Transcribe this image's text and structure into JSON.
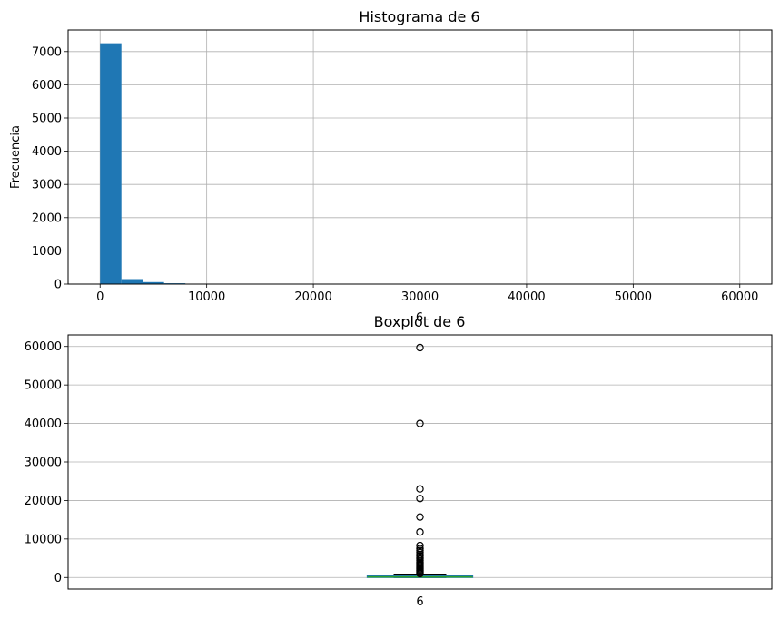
{
  "chart_data": [
    {
      "type": "histogram",
      "title": "Histograma de 6",
      "xlabel": "6",
      "ylabel": "Frecuencia",
      "xlim": [
        -3000,
        63000
      ],
      "ylim": [
        0,
        7650
      ],
      "xticks": [
        0,
        10000,
        20000,
        30000,
        40000,
        50000,
        60000
      ],
      "yticks": [
        0,
        1000,
        2000,
        3000,
        4000,
        5000,
        6000,
        7000
      ],
      "bin_width": 2000,
      "bins": [
        {
          "x0": 0,
          "x1": 2000,
          "count": 7250
        },
        {
          "x0": 2000,
          "x1": 4000,
          "count": 150
        },
        {
          "x0": 4000,
          "x1": 6000,
          "count": 60
        },
        {
          "x0": 6000,
          "x1": 8000,
          "count": 25
        },
        {
          "x0": 8000,
          "x1": 10000,
          "count": 4
        },
        {
          "x0": 10000,
          "x1": 12000,
          "count": 3
        },
        {
          "x0": 14000,
          "x1": 16000,
          "count": 2
        },
        {
          "x0": 20000,
          "x1": 22000,
          "count": 2
        },
        {
          "x0": 22000,
          "x1": 24000,
          "count": 2
        },
        {
          "x0": 40000,
          "x1": 42000,
          "count": 2
        },
        {
          "x0": 58000,
          "x1": 60000,
          "count": 3
        }
      ],
      "grid": true,
      "color": "#1f77b4"
    },
    {
      "type": "boxplot",
      "title": "Boxplot de 6",
      "categories": [
        "6"
      ],
      "ylim": [
        -3000,
        63000
      ],
      "yticks": [
        0,
        10000,
        20000,
        30000,
        40000,
        50000,
        60000
      ],
      "box": {
        "q1": 30,
        "median": 150,
        "q3": 400,
        "whisker_low": 0,
        "whisker_high": 900
      },
      "outliers": [
        1000,
        1300,
        1600,
        1900,
        2200,
        2500,
        2800,
        3100,
        3400,
        3700,
        4000,
        4400,
        4800,
        5200,
        5600,
        6000,
        6500,
        7000,
        7500,
        8300,
        11800,
        15700,
        20500,
        23000,
        40000,
        59700
      ],
      "grid": true,
      "box_color": "#1f77b4",
      "median_color": "#2ca02c"
    }
  ]
}
